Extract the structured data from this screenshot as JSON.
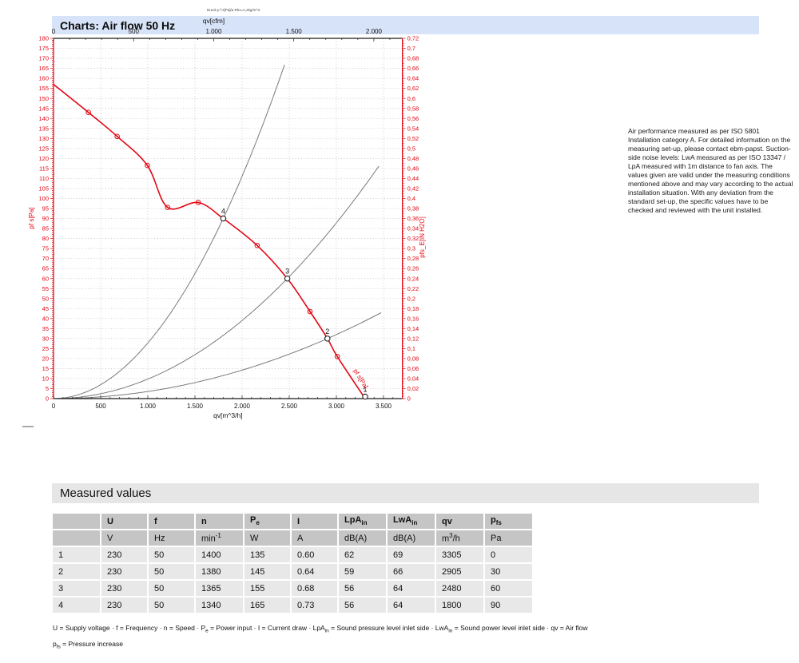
{
  "page_title": "Charts: Air flow 50 Hz",
  "section_title": "Measured values",
  "side_note": "Air performance measured as per ISO 5801 Installation category A. For detailed information on the measuring set-up, please contact ebm-papst. Suction-side noise levels: LwA measured as per ISO 13347 / LpA measured with 1m distance to fan axis. The values given are valid under the measuring conditions mentioned above and may vary according to the actual installation situation. With any deviation from the standard set-up, the specific values have to be checked and reviewed with the unit installed.",
  "chart_data": {
    "type": "line",
    "title_note": "Druck p f s[Pa]/a Rho=1,2kg/m^3",
    "axes": {
      "bottom": {
        "label": "qv[m^3/h]",
        "min": 0,
        "max": 3700,
        "major_step": 500,
        "minor_step": 100,
        "tick_labels": [
          "0",
          "500",
          "1.000",
          "1.500",
          "2.000",
          "2.500",
          "3.000",
          "3.500"
        ]
      },
      "top": {
        "label": "qv[cfm]",
        "min": 0,
        "max": 2178,
        "major_step": 500,
        "minor_step": 100,
        "tick_labels": [
          "0",
          "500",
          "1.000",
          "1.500",
          "2.000"
        ]
      },
      "left": {
        "label": "pf s[Pa]",
        "min": 0,
        "max": 180,
        "major_step": 5,
        "minor_step": 1
      },
      "right": {
        "label": "pfs_E[IN H2O]",
        "min": 0,
        "max": 0.72,
        "major_step": 0.02,
        "minor_step": 0.005
      }
    },
    "grid": {
      "h_step": 5,
      "v_step": 500,
      "color": "#c2c2c2"
    },
    "fan_curve": {
      "label": "pf s[Pa]",
      "color": "#e30613",
      "points": [
        [
          0,
          157
        ],
        [
          370,
          143
        ],
        [
          675,
          131
        ],
        [
          995,
          116.5
        ],
        [
          1210,
          95.5
        ],
        [
          1535,
          98
        ],
        [
          1800,
          90
        ],
        [
          2160,
          76.5
        ],
        [
          2480,
          60
        ],
        [
          2720,
          43.5
        ],
        [
          2905,
          30
        ],
        [
          3010,
          21
        ],
        [
          3305,
          0
        ]
      ],
      "marker_points": [
        [
          370,
          143
        ],
        [
          675,
          131
        ],
        [
          995,
          116.5
        ],
        [
          1210,
          95.5
        ],
        [
          1535,
          98
        ],
        [
          2160,
          76.5
        ],
        [
          2720,
          43.5
        ],
        [
          3010,
          21
        ]
      ]
    },
    "operating_points": [
      {
        "n": "1",
        "qv": 3305,
        "pfs": 0
      },
      {
        "n": "2",
        "qv": 2905,
        "pfs": 30
      },
      {
        "n": "3",
        "qv": 2480,
        "pfs": 60
      },
      {
        "n": "4",
        "qv": 1800,
        "pfs": 90
      }
    ],
    "system_curves": [
      {
        "q_ref": 1800,
        "p_ref": 90,
        "q_end": 2455
      },
      {
        "q_ref": 2480,
        "p_ref": 60,
        "q_end": 3470
      },
      {
        "q_ref": 2905,
        "p_ref": 30,
        "q_end": 3485
      }
    ],
    "system_curve_color": "#7a7a7a"
  },
  "table": {
    "headers": [
      {
        "base": ""
      },
      {
        "base": "U"
      },
      {
        "base": "f"
      },
      {
        "base": "n"
      },
      {
        "base": "P",
        "sub": "e"
      },
      {
        "base": "I"
      },
      {
        "base": "LpA",
        "sub": "in"
      },
      {
        "base": "LwA",
        "sub": "in"
      },
      {
        "base": "qv"
      },
      {
        "base": "p",
        "sub": "fs"
      }
    ],
    "units": [
      {
        "base": ""
      },
      {
        "base": "V"
      },
      {
        "base": "Hz"
      },
      {
        "base": "min",
        "sup": "-1"
      },
      {
        "base": "W"
      },
      {
        "base": "A"
      },
      {
        "base": "dB(A)"
      },
      {
        "base": "dB(A)"
      },
      {
        "base": "m",
        "sup": "3",
        "after": "/h"
      },
      {
        "base": "Pa"
      }
    ],
    "rows": [
      [
        "1",
        "230",
        "50",
        "1400",
        "135",
        "0.60",
        "62",
        "69",
        "3305",
        "0"
      ],
      [
        "2",
        "230",
        "50",
        "1380",
        "145",
        "0.64",
        "59",
        "66",
        "2905",
        "30"
      ],
      [
        "3",
        "230",
        "50",
        "1365",
        "155",
        "0.68",
        "56",
        "64",
        "2480",
        "60"
      ],
      [
        "4",
        "230",
        "50",
        "1340",
        "165",
        "0.73",
        "56",
        "64",
        "1800",
        "90"
      ]
    ]
  },
  "footnotes": {
    "line1": [
      [
        "t",
        "U = Supply voltage · f = Frequency · n = Speed · P"
      ],
      [
        "sub",
        "e"
      ],
      [
        "t",
        " = Power input · I = Current draw · LpA"
      ],
      [
        "sub",
        "in"
      ],
      [
        "t",
        " = Sound pressure level inlet side · LwA"
      ],
      [
        "sub",
        "in"
      ],
      [
        "t",
        " = Sound power level inlet side · qv = Air flow"
      ]
    ],
    "line2": [
      [
        "t",
        "p"
      ],
      [
        "sub",
        "fs"
      ],
      [
        "t",
        " = Pressure increase"
      ]
    ]
  }
}
